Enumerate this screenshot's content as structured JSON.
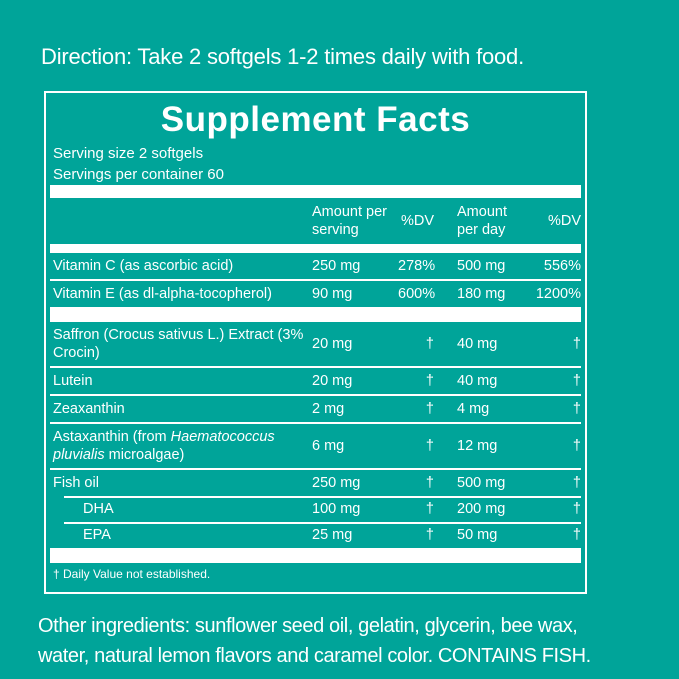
{
  "colors": {
    "background": "#00a499",
    "panel_border": "#ffffff",
    "text": "#ffffff",
    "bar": "#ffffff"
  },
  "direction_text": "Direction: Take 2 softgels 1-2 times daily with food.",
  "supplement_facts": {
    "title": "Supplement Facts",
    "serving_size": "Serving size 2 softgels",
    "servings_per_container": "Servings per container 60",
    "column_headers": {
      "amount_per_serving": "Amount per serving",
      "dv_serving": "%DV",
      "amount_per_day": "Amount per day",
      "dv_day": "%DV"
    },
    "rows": [
      {
        "name": "Vitamin C (as ascorbic acid)",
        "amount_per_serving": "250 mg",
        "dv_serving": "278%",
        "amount_per_day": "500 mg",
        "dv_day": "556%"
      },
      {
        "name": "Vitamin E (as dl-alpha-tocopherol)",
        "amount_per_serving": "90 mg",
        "dv_serving": "600%",
        "amount_per_day": "180 mg",
        "dv_day": "1200%"
      },
      {
        "name_lines": [
          "Saffron (Crocus sativus L.) Extract (3%",
          "Crocin)"
        ],
        "amount_per_serving": "20 mg",
        "dv_serving": "†",
        "amount_per_day": "40 mg",
        "dv_day": "†"
      },
      {
        "name": "Lutein",
        "amount_per_serving": "20 mg",
        "dv_serving": "†",
        "amount_per_day": "40 mg",
        "dv_day": "†"
      },
      {
        "name": "Zeaxanthin",
        "amount_per_serving": "2 mg",
        "dv_serving": "†",
        "amount_per_day": "4 mg",
        "dv_day": "†"
      },
      {
        "name_prefix": "Astaxanthin (from ",
        "name_italic_lines": [
          "Haematococcus",
          "pluvialis"
        ],
        "name_suffix": " microalgae)",
        "amount_per_serving": "6 mg",
        "dv_serving": "†",
        "amount_per_day": "12 mg",
        "dv_day": "†"
      },
      {
        "name": "Fish oil",
        "amount_per_serving": "250 mg",
        "dv_serving": "†",
        "amount_per_day": "500 mg",
        "dv_day": "†"
      },
      {
        "name": "DHA",
        "indent": true,
        "amount_per_serving": "100 mg",
        "dv_serving": "†",
        "amount_per_day": "200 mg",
        "dv_day": "†"
      },
      {
        "name": "EPA",
        "indent": true,
        "amount_per_serving": "25 mg",
        "dv_serving": "†",
        "amount_per_day": "50 mg",
        "dv_day": "†"
      }
    ],
    "footnote": "† Daily Value not established."
  },
  "other_ingredients_lines": [
    "Other ingredients: sunflower seed oil, gelatin, glycerin, bee wax,",
    "water, natural lemon flavors and caramel color. CONTAINS FISH."
  ]
}
